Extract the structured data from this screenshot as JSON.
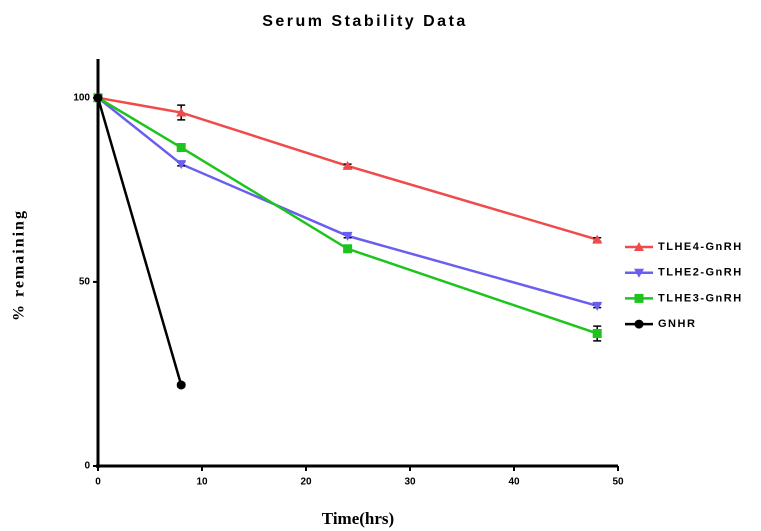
{
  "chart_data": {
    "type": "line",
    "title": "Serum Stability Data",
    "x_label": "Time(hrs)",
    "y_label": "% remaining",
    "xlim": [
      0,
      50
    ],
    "xticks": [
      0,
      10,
      20,
      30,
      40,
      50
    ],
    "ylim": [
      0,
      110
    ],
    "yticks": [
      0,
      50,
      100
    ],
    "legend_position": "right",
    "series": [
      {
        "name": "TLHE4-GnRH",
        "color": "#f04a4a",
        "marker": "triangle-up",
        "x": [
          0,
          8,
          24,
          48
        ],
        "values": [
          100,
          96,
          81.5,
          61.5
        ],
        "errors": [
          0.5,
          2,
          0.5,
          0.5
        ]
      },
      {
        "name": "TLHE2-GnRH",
        "color": "#6a5ef0",
        "marker": "triangle-down",
        "x": [
          0,
          8,
          24,
          48
        ],
        "values": [
          100,
          82,
          62.5,
          43.5
        ],
        "errors": [
          0.5,
          0.5,
          0.5,
          0.5
        ]
      },
      {
        "name": "TLHE3-GnRH",
        "color": "#1ec41e",
        "marker": "square",
        "x": [
          0,
          8,
          24,
          48
        ],
        "values": [
          100,
          86.5,
          59,
          36
        ],
        "errors": [
          0.5,
          0.5,
          0.5,
          2
        ]
      },
      {
        "name": "GNHR",
        "color": "#000000",
        "marker": "circle",
        "x": [
          0,
          8
        ],
        "values": [
          100,
          22
        ],
        "errors": [
          0.5,
          0.5
        ]
      }
    ]
  }
}
